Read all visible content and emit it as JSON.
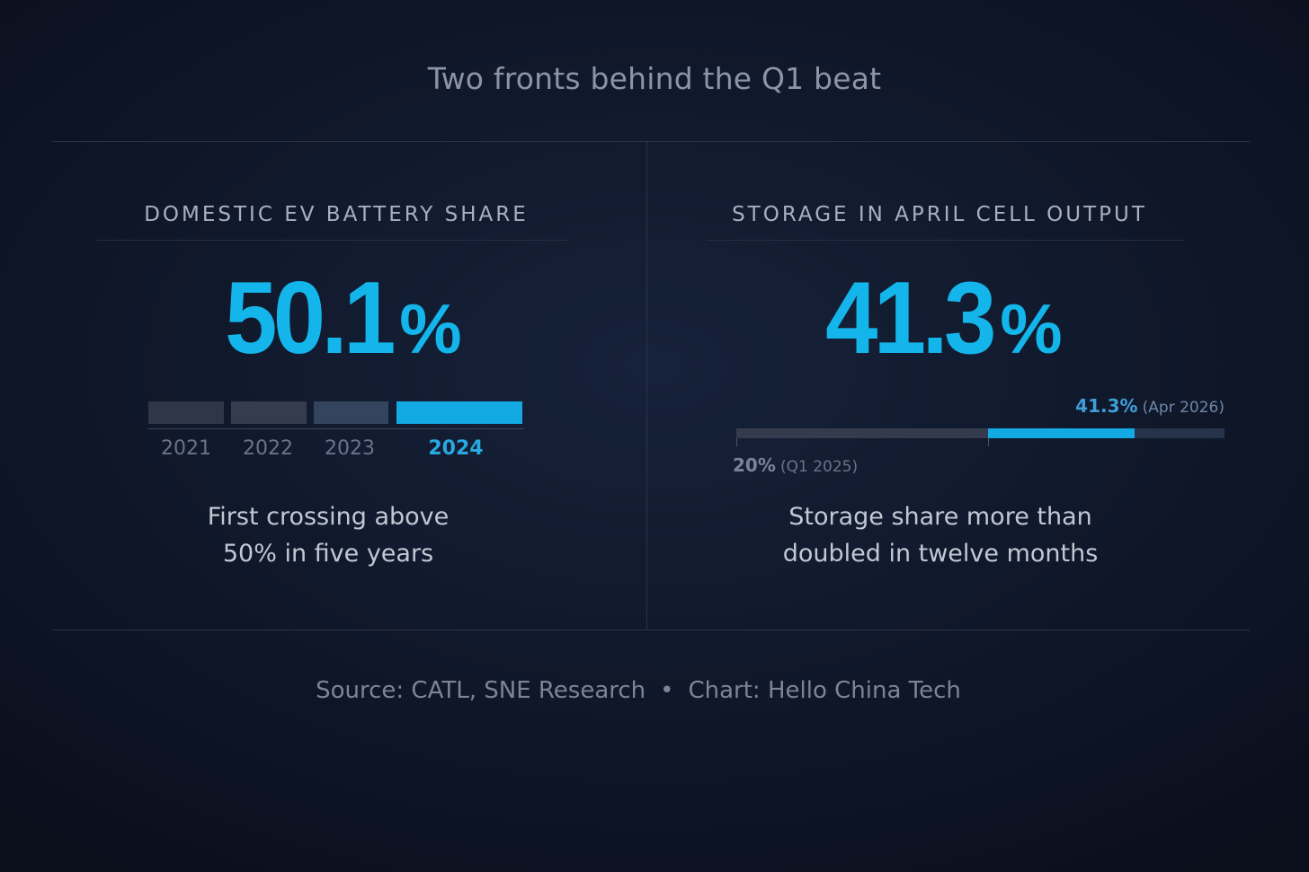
{
  "title": "Two fronts behind the Q1 beat",
  "colors": {
    "accent": "#13b5ea",
    "bar_past": "#2f3647",
    "bar_2023": "#35445e",
    "track": "#343b4c",
    "track_end": "#27334a"
  },
  "left_panel": {
    "heading": "DOMESTIC EV BATTERY SHARE",
    "value": "50.1",
    "unit": "%",
    "caption_line1": "First crossing above",
    "caption_line2": "50% in five years"
  },
  "right_panel": {
    "heading": "STORAGE IN APRIL CELL OUTPUT",
    "value": "41.3",
    "unit": "%",
    "caption_line1": "Storage share more than",
    "caption_line2": "doubled in twelve months"
  },
  "chart_data": [
    {
      "type": "bar",
      "title": "DOMESTIC EV BATTERY SHARE",
      "categories": [
        "2021",
        "2022",
        "2023",
        "2024"
      ],
      "highlight": "2024",
      "headline_value": 50.1,
      "unit": "%"
    },
    {
      "type": "bar",
      "title": "STORAGE IN APRIL CELL OUTPUT",
      "orientation": "horizontal",
      "xlim": [
        0,
        100
      ],
      "start": {
        "value": 20,
        "value_label": "20%",
        "period_label": "(Q1 2025)"
      },
      "end": {
        "value": 41.3,
        "value_label": "41.3%",
        "period_label": "(Apr 2026)"
      },
      "headline_value": 41.3,
      "unit": "%"
    }
  ],
  "footer": {
    "source": "Source: CATL, SNE Research",
    "separator": "•",
    "credit": "Chart: Hello China Tech"
  }
}
